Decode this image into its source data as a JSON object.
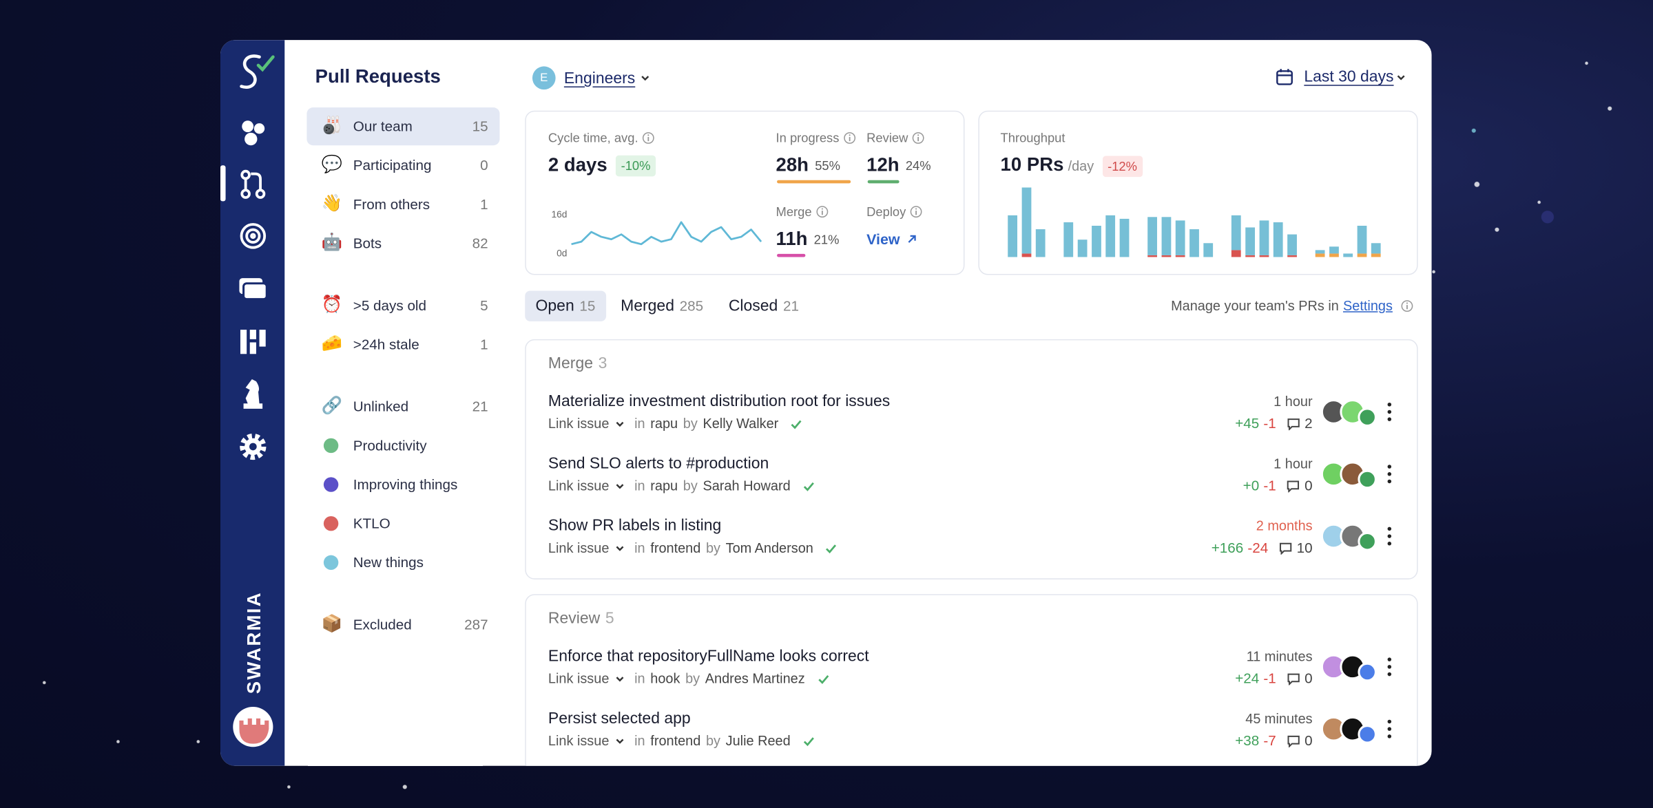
{
  "sidebar": {
    "brand": "SWARMIA"
  },
  "header": {
    "team_initial": "E",
    "team": "Engineers",
    "date_range": "Last 30 days"
  },
  "nav": {
    "title": "Pull Requests",
    "groups": [
      [
        {
          "icon": "🎳",
          "label": "Our team",
          "count": 15,
          "selected": true
        },
        {
          "icon": "💬",
          "label": "Participating",
          "count": 0
        },
        {
          "icon": "👋",
          "label": "From others",
          "count": 1
        },
        {
          "icon": "🤖",
          "label": "Bots",
          "count": 82
        }
      ],
      [
        {
          "icon": "⏰",
          "label": ">5 days old",
          "count": 5
        },
        {
          "icon": "🧀",
          "label": ">24h stale",
          "count": 1
        }
      ],
      [
        {
          "icon": "🔗",
          "label": "Unlinked",
          "count": 21
        },
        {
          "dot": "#6dbb85",
          "label": "Productivity"
        },
        {
          "dot": "#5b50c8",
          "label": "Improving things"
        },
        {
          "dot": "#d9625e",
          "label": "KTLO"
        },
        {
          "dot": "#7cc6dc",
          "label": "New things"
        }
      ],
      [
        {
          "icon": "📦",
          "label": "Excluded",
          "count": 287
        }
      ]
    ]
  },
  "metrics": {
    "cycle_time": {
      "label": "Cycle time, avg.",
      "value": "2 days",
      "change": "-10%",
      "chart": {
        "type": "line",
        "color": "#5fb8d6",
        "ylim": [
          0,
          16
        ],
        "yticks": [
          {
            "value": 0,
            "label": "0d"
          },
          {
            "value": 16,
            "label": "16d"
          }
        ],
        "values": [
          4,
          5,
          9,
          7,
          6,
          8,
          5,
          4,
          7,
          5,
          6,
          13,
          7,
          5,
          9,
          11,
          6,
          7,
          10,
          5
        ]
      }
    },
    "stages": [
      {
        "label": "In progress",
        "value": "28h",
        "share": "55%",
        "color": "#f0a54a"
      },
      {
        "label": "Review",
        "value": "12h",
        "share": "24%",
        "color": "#5fae6f"
      },
      {
        "label": "Merge",
        "value": "11h",
        "share": "21%",
        "color": "#d64fa8"
      },
      {
        "label": "Deploy",
        "link": "View"
      }
    ],
    "throughput": {
      "label": "Throughput",
      "value": "10 PRs",
      "unit": "/day",
      "change": "-12%",
      "chart": {
        "type": "bar",
        "ylim": [
          0,
          20
        ],
        "series": [
          {
            "color": "#d9534f",
            "values": [
              0,
              1,
              0,
              null,
              0,
              0,
              0,
              0,
              0,
              null,
              0.5,
              0.5,
              0.5,
              0,
              0,
              null,
              2,
              0.5,
              0.5,
              0,
              0.5,
              null,
              0,
              0,
              0,
              0,
              0
            ]
          },
          {
            "color": "#f0a54a",
            "values": [
              0,
              0,
              0,
              null,
              0,
              0,
              0,
              0,
              0,
              null,
              0,
              0,
              0,
              0,
              0,
              null,
              0,
              0,
              0,
              0,
              0,
              null,
              1,
              1,
              0,
              1,
              1
            ]
          },
          {
            "color": "#76bfd6",
            "values": [
              12,
              19,
              8,
              null,
              10,
              5,
              9,
              12,
              11,
              null,
              11,
              11,
              10,
              8,
              4,
              null,
              10,
              8,
              10,
              10,
              6,
              null,
              1,
              2,
              1,
              8,
              3
            ]
          }
        ]
      }
    }
  },
  "tabs": [
    {
      "label": "Open",
      "count": 15,
      "selected": true
    },
    {
      "label": "Merged",
      "count": 285
    },
    {
      "label": "Closed",
      "count": 21
    }
  ],
  "manage": {
    "text": "Manage your team's PRs in",
    "link": "Settings"
  },
  "labels": {
    "link_issue": "Link issue",
    "in": "in",
    "by": "by"
  },
  "sections": [
    {
      "title": "Merge",
      "count": 3,
      "rows": [
        {
          "title": "Materialize investment distribution root for issues",
          "repo": "rapu",
          "author": "Kelly Walker",
          "age": "1 hour",
          "additions": "+45",
          "deletions": "-1",
          "comments": 2
        },
        {
          "title": "Send SLO alerts to #production",
          "repo": "rapu",
          "author": "Sarah Howard",
          "age": "1 hour",
          "additions": "+0",
          "deletions": "-1",
          "comments": 0
        },
        {
          "title": "Show PR labels in listing",
          "repo": "frontend",
          "author": "Tom Anderson",
          "age": "2 months",
          "stale": true,
          "additions": "+166",
          "deletions": "-24",
          "comments": 10
        }
      ]
    },
    {
      "title": "Review",
      "count": 5,
      "rows": [
        {
          "title": "Enforce that repositoryFullName looks correct",
          "repo": "hook",
          "author": "Andres Martinez",
          "age": "11 minutes",
          "additions": "+24",
          "deletions": "-1",
          "comments": 0
        },
        {
          "title": "Persist selected app",
          "repo": "frontend",
          "author": "Julie Reed",
          "age": "45 minutes",
          "additions": "+38",
          "deletions": "-7",
          "comments": 0
        }
      ]
    }
  ]
}
